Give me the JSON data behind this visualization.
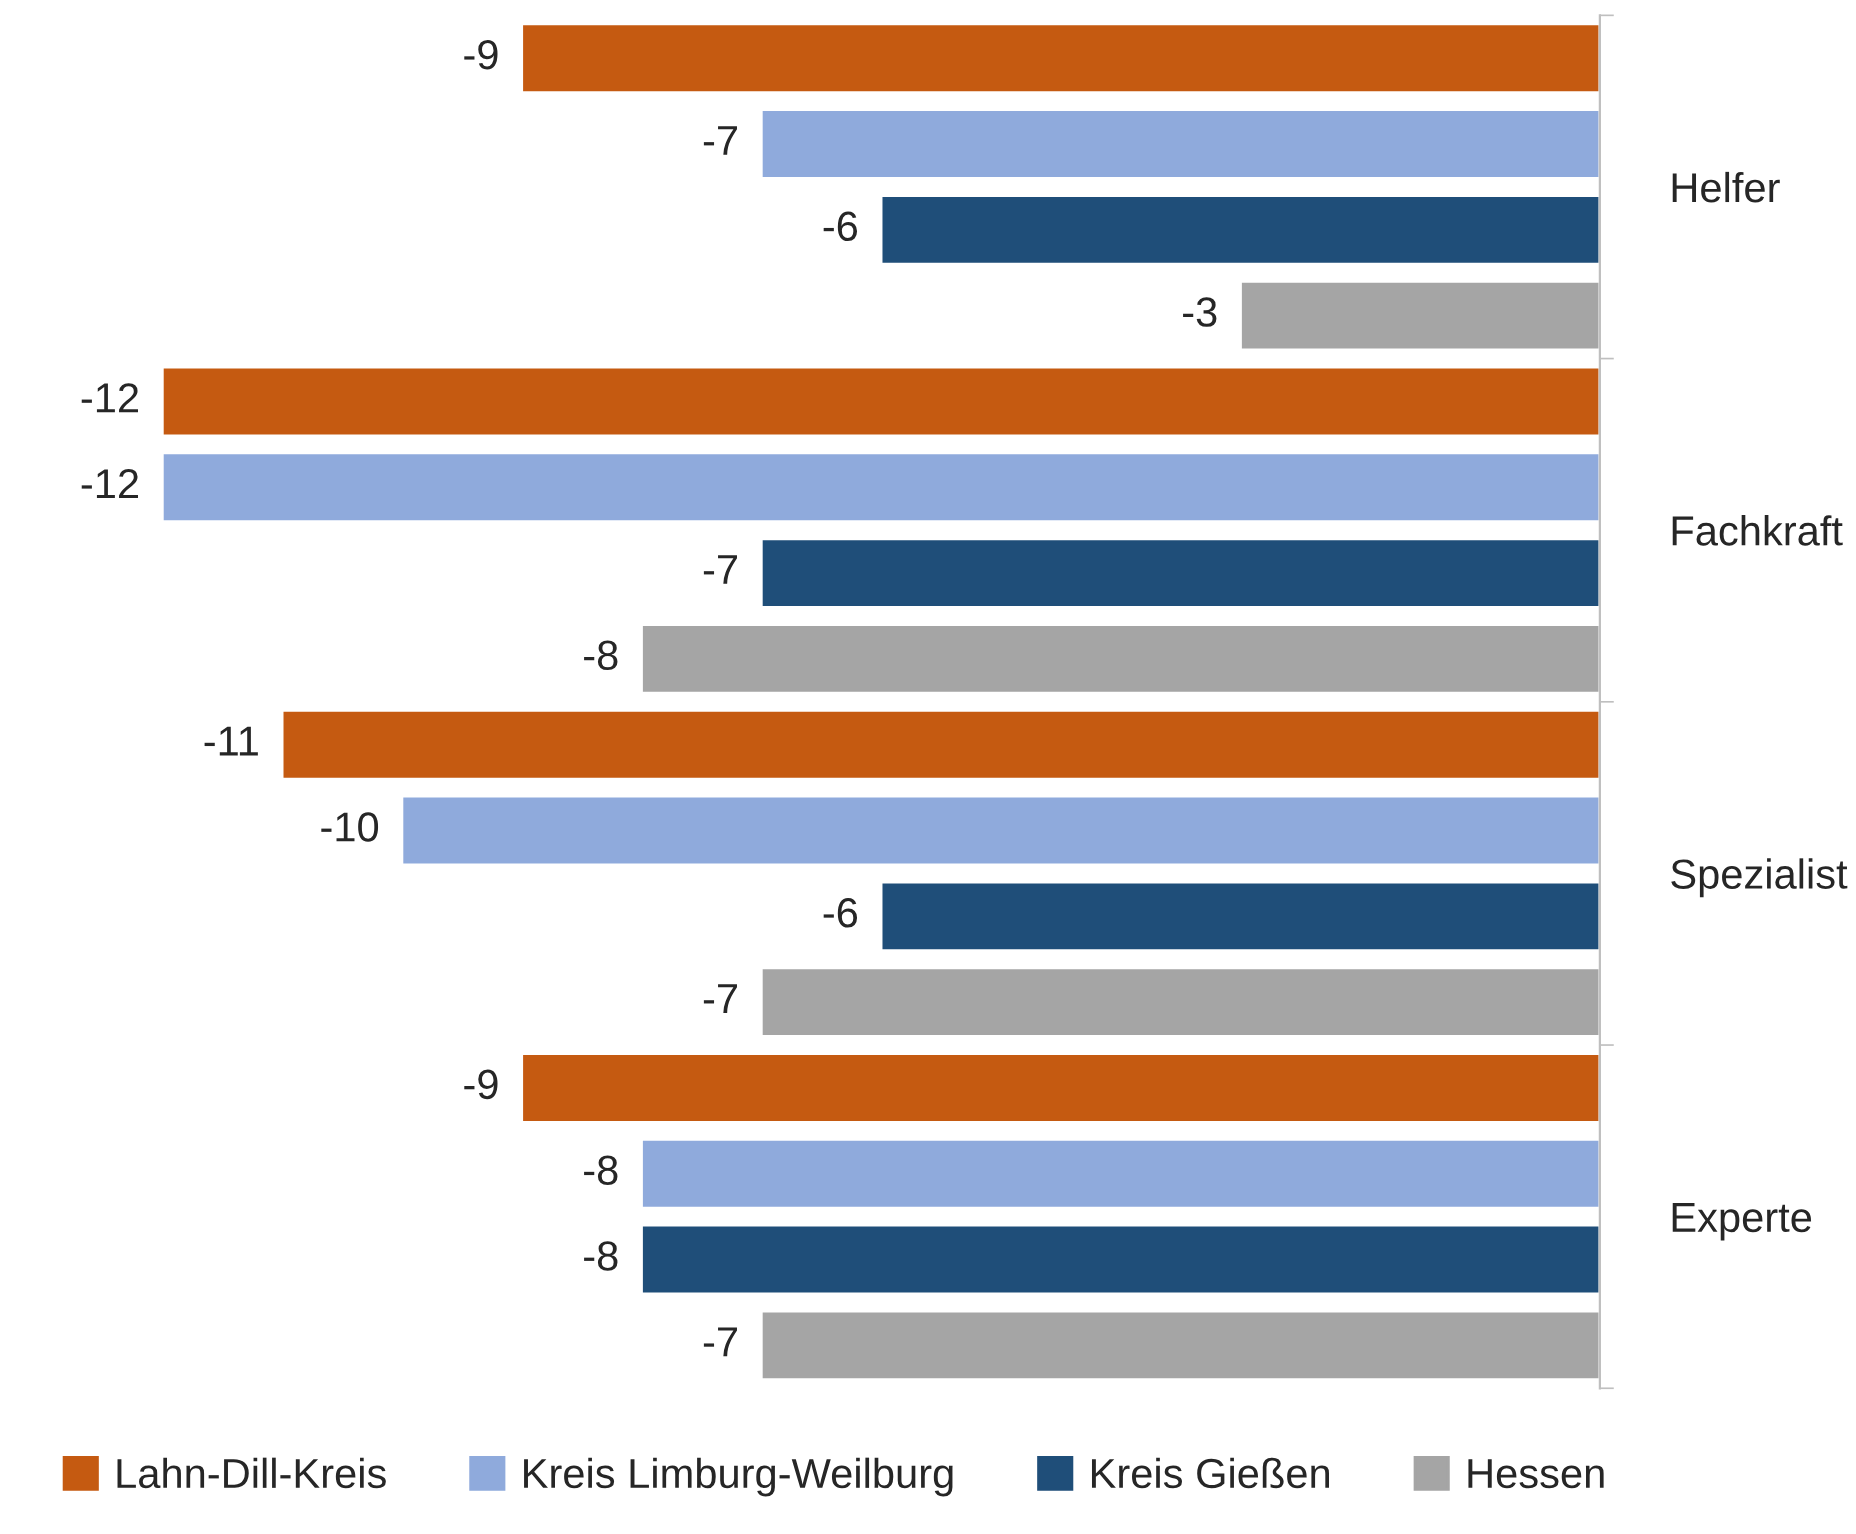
{
  "chart_data": {
    "type": "bar",
    "orientation": "horizontal",
    "categories": [
      "Helfer",
      "Fachkraft",
      "Spezialist",
      "Experte"
    ],
    "series": [
      {
        "name": "Lahn-Dill-Kreis",
        "color": "#c55a11",
        "values": [
          -9,
          -12,
          -11,
          -9
        ]
      },
      {
        "name": "Kreis Limburg-Weilburg",
        "color": "#8faadc",
        "values": [
          -7,
          -12,
          -10,
          -8
        ]
      },
      {
        "name": "Kreis Gießen",
        "color": "#1f4e79",
        "values": [
          -6,
          -7,
          -6,
          -8
        ]
      },
      {
        "name": "Hessen",
        "color": "#a5a5a5",
        "values": [
          -3,
          -8,
          -7,
          -7
        ]
      }
    ],
    "data_labels": true,
    "legend": "bottom",
    "grid": false
  }
}
